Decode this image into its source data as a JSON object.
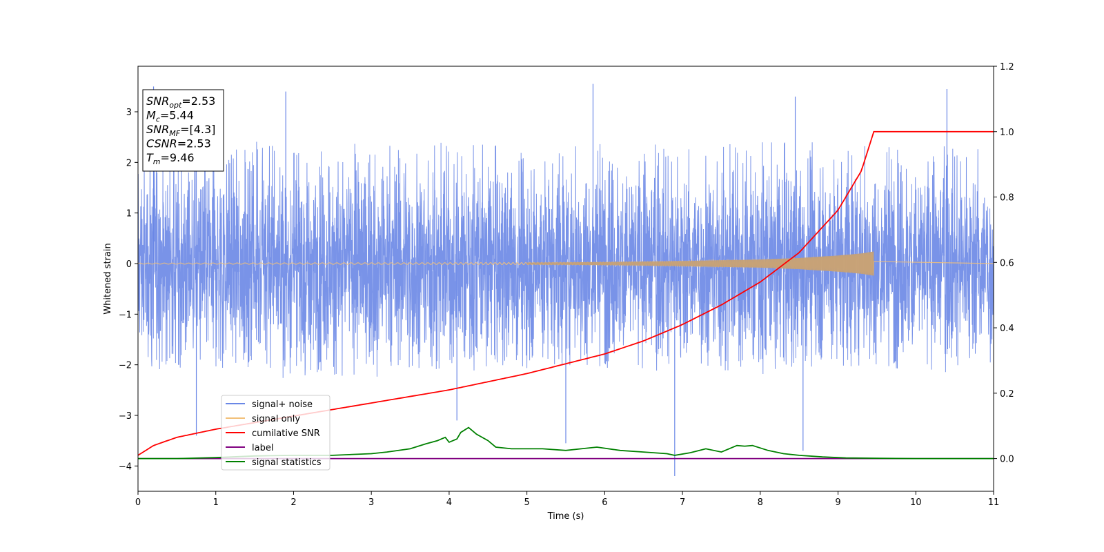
{
  "chart_data": {
    "type": "line",
    "xlabel": "Time (s)",
    "ylabel": "Whitened strain",
    "xlim": [
      0,
      11
    ],
    "ylim_left": [
      -4.5,
      3.9
    ],
    "ylim_right": [
      -0.1,
      1.2
    ],
    "x_ticks": [
      0,
      1,
      2,
      3,
      4,
      5,
      6,
      7,
      8,
      9,
      10,
      11
    ],
    "y_ticks_left": [
      3,
      2,
      1,
      0,
      -1,
      -2,
      -3,
      -4
    ],
    "y_tick_labels_left": [
      "3",
      "2",
      "1",
      "0",
      "−1",
      "−2",
      "−3",
      "−4"
    ],
    "y_ticks_right": [
      1.2,
      1.0,
      0.8,
      0.6,
      0.4,
      0.2,
      0.0
    ],
    "y_tick_labels_right": [
      "1.2",
      "1.0",
      "0.8",
      "0.6",
      "0.4",
      "0.2",
      "0.0"
    ],
    "grid": false,
    "legend_position": "lower-left",
    "annotation": {
      "lines": [
        {
          "base": "SNR",
          "sub": "opt",
          "value": "=2.53"
        },
        {
          "base": "M",
          "sub": "c",
          "value": "=5.44"
        },
        {
          "base": "SNR",
          "sub": "MF",
          "value": "=[4.3]"
        },
        {
          "base": "CSNR",
          "sub": "",
          "value": "=2.53"
        },
        {
          "base": "T",
          "sub": "m",
          "value": "=9.46"
        }
      ]
    },
    "series": [
      {
        "name": "signal+ noise",
        "axis": "left",
        "color": "#6a87e6",
        "description_of_values": "dense noise approximately within [-2.2, 2.4], spikes up to 3.55 and down to -4.2",
        "envelope_upper": [
          2.3,
          2.4,
          2.3,
          2.3,
          2.4,
          2.3,
          2.4,
          2.3,
          2.4,
          2.4,
          2.3,
          2.3
        ],
        "envelope_lower": [
          -2.1,
          -2.1,
          -2.2,
          -2.2,
          -2.0,
          -2.1,
          -2.1,
          -2.0,
          -2.1,
          -2.1,
          -2.1,
          -2.0
        ],
        "spikes": [
          [
            0.2,
            3.5
          ],
          [
            1.9,
            3.4
          ],
          [
            5.85,
            3.55
          ],
          [
            8.45,
            3.3
          ],
          [
            10.4,
            3.45
          ],
          [
            0.75,
            -3.4
          ],
          [
            4.1,
            -3.1
          ],
          [
            5.5,
            -3.55
          ],
          [
            6.9,
            -4.2
          ],
          [
            8.55,
            -3.7
          ]
        ]
      },
      {
        "name": "signal only",
        "axis": "left",
        "color": "#f2c078",
        "description_of_values": "chirp ending at 9.46 s",
        "amplitude_x": [
          0,
          5,
          6,
          7,
          8,
          8.5,
          9,
          9.3,
          9.46
        ],
        "amplitude_y": [
          0.01,
          0.02,
          0.03,
          0.05,
          0.08,
          0.11,
          0.16,
          0.2,
          0.24
        ]
      },
      {
        "name": "cumilative SNR",
        "axis": "right",
        "color": "#ff0000",
        "x": [
          0,
          0.2,
          0.5,
          1,
          1.5,
          2,
          2.5,
          3,
          3.5,
          4,
          4.5,
          5,
          5.5,
          6,
          6.5,
          7,
          7.5,
          8,
          8.5,
          9,
          9.3,
          9.46,
          11
        ],
        "y": [
          0.01,
          0.04,
          0.065,
          0.09,
          0.11,
          0.13,
          0.15,
          0.17,
          0.19,
          0.21,
          0.235,
          0.26,
          0.29,
          0.32,
          0.36,
          0.41,
          0.47,
          0.54,
          0.63,
          0.76,
          0.88,
          1.0,
          1.0
        ]
      },
      {
        "name": "label",
        "axis": "right",
        "color": "#800080",
        "x": [
          0,
          11
        ],
        "y": [
          0,
          0
        ]
      },
      {
        "name": "signal statistics",
        "axis": "right",
        "color": "#008000",
        "x": [
          0,
          0.5,
          1,
          1.5,
          2,
          2.5,
          3,
          3.2,
          3.5,
          3.7,
          3.85,
          3.95,
          4.0,
          4.1,
          4.15,
          4.25,
          4.35,
          4.5,
          4.6,
          4.8,
          5.0,
          5.2,
          5.5,
          5.7,
          5.9,
          6.2,
          6.5,
          6.8,
          6.9,
          7.1,
          7.3,
          7.5,
          7.7,
          7.8,
          7.9,
          8.1,
          8.3,
          8.5,
          8.8,
          9.1,
          9.5,
          10,
          11
        ],
        "y": [
          0.0,
          0.0,
          0.003,
          0.008,
          0.01,
          0.01,
          0.015,
          0.02,
          0.03,
          0.045,
          0.055,
          0.065,
          0.05,
          0.06,
          0.08,
          0.095,
          0.075,
          0.055,
          0.035,
          0.03,
          0.03,
          0.03,
          0.025,
          0.03,
          0.035,
          0.025,
          0.02,
          0.015,
          0.01,
          0.018,
          0.03,
          0.02,
          0.04,
          0.038,
          0.04,
          0.025,
          0.015,
          0.01,
          0.005,
          0.002,
          0.001,
          0.0,
          0.0
        ]
      }
    ]
  }
}
